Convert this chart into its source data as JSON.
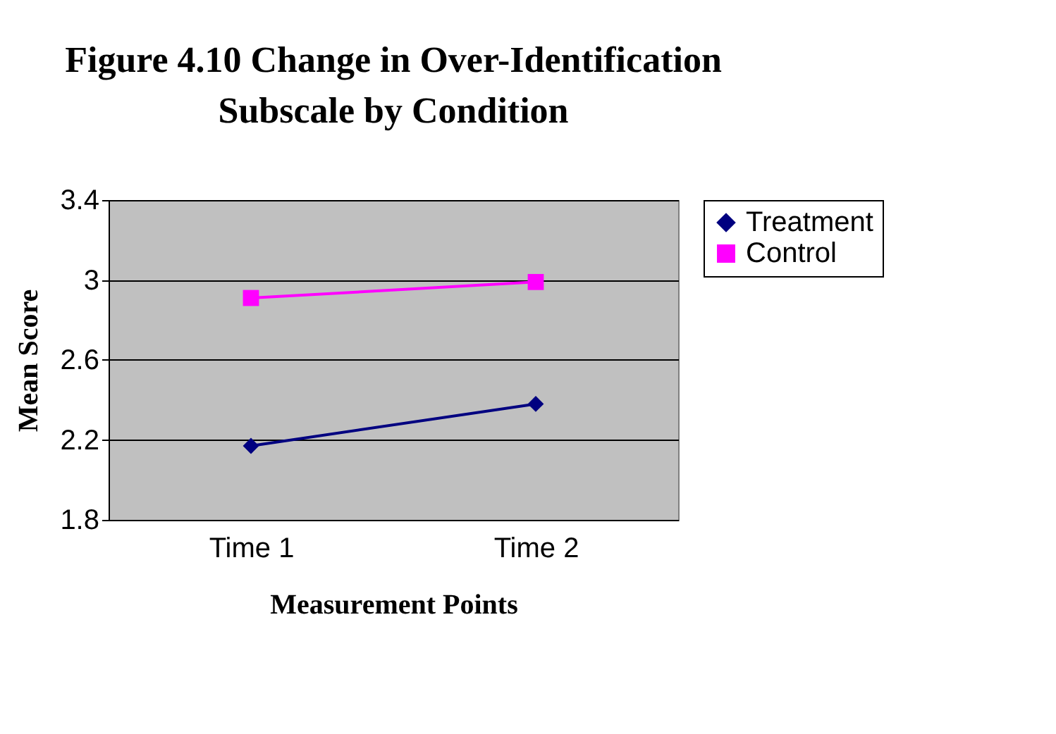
{
  "chart_data": {
    "type": "line",
    "title": "Figure 4.10 Change in Over-Identification Subscale by Condition",
    "xlabel": "Measurement Points",
    "ylabel": "Mean Score",
    "categories": [
      "Time 1",
      "Time 2"
    ],
    "series": [
      {
        "name": "Treatment",
        "color": "#000080",
        "marker": "diamond",
        "values": [
          2.17,
          2.38
        ]
      },
      {
        "name": "Control",
        "color": "#ff00ff",
        "marker": "square",
        "values": [
          2.91,
          2.99
        ]
      }
    ],
    "ylim": [
      1.8,
      3.4
    ],
    "yticks": [
      1.8,
      2.2,
      2.6,
      3,
      3.4
    ],
    "grid": "y",
    "legend": "right",
    "line_style": "solid"
  }
}
